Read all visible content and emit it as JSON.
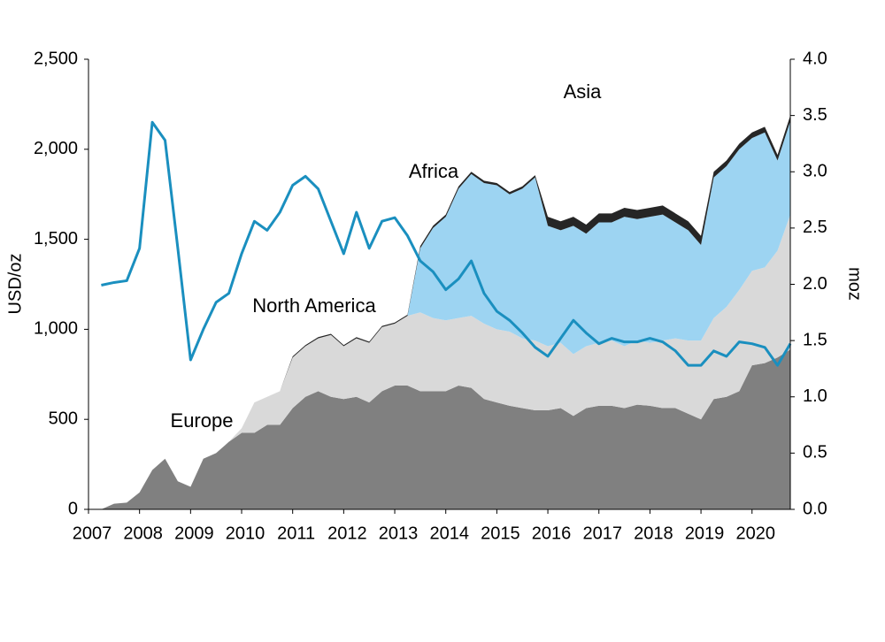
{
  "chart_data": {
    "type": "area",
    "y_label": "USD/oz",
    "y2_label": "moz",
    "xlim": [
      2007,
      2020.75
    ],
    "xticks": [
      2007,
      2008,
      2009,
      2010,
      2011,
      2012,
      2013,
      2014,
      2015,
      2016,
      2017,
      2018,
      2019,
      2020
    ],
    "ylim": [
      0,
      2500
    ],
    "yticks": [
      0,
      {
        "value": 500,
        "label": "500"
      },
      {
        "value": 1000,
        "label": "1,000"
      },
      {
        "value": 1500,
        "label": "1,500"
      },
      {
        "value": 2000,
        "label": "2,000"
      },
      {
        "value": 2500,
        "label": "2,500"
      }
    ],
    "y2lim": [
      0,
      4
    ],
    "y2ticks": [
      {
        "value": 0,
        "label": "0.0"
      },
      0.5,
      {
        "value": 1,
        "label": "1.0"
      },
      1.5,
      {
        "value": 2,
        "label": "2.0"
      },
      2.5,
      {
        "value": 3,
        "label": "3.0"
      },
      3.5,
      {
        "value": 4,
        "label": "4.0"
      }
    ],
    "x": [
      2007.25,
      2007.5,
      2007.75,
      2008,
      2008.25,
      2008.5,
      2008.75,
      2009,
      2009.25,
      2009.5,
      2009.75,
      2010,
      2010.25,
      2010.5,
      2010.75,
      2011,
      2011.25,
      2011.5,
      2011.75,
      2012,
      2012.25,
      2012.5,
      2012.75,
      2013,
      2013.25,
      2013.5,
      2013.75,
      2014,
      2014.25,
      2014.5,
      2014.75,
      2015,
      2015.25,
      2015.5,
      2015.75,
      2016,
      2016.25,
      2016.5,
      2016.75,
      2017,
      2017.25,
      2017.5,
      2017.75,
      2018,
      2018.25,
      2018.5,
      2018.75,
      2019,
      2019.25,
      2019.5,
      2019.75,
      2020,
      2020.25,
      2020.5,
      2020.75
    ],
    "series": [
      {
        "name": "Europe",
        "type": "area",
        "axis": "y2",
        "color": "#808080",
        "values": [
          0,
          0.05,
          0.06,
          0.15,
          0.35,
          0.45,
          0.25,
          0.2,
          0.45,
          0.5,
          0.6,
          0.68,
          0.68,
          0.75,
          0.75,
          0.9,
          1.0,
          1.05,
          1.0,
          0.98,
          1.0,
          0.95,
          1.05,
          1.1,
          1.1,
          1.05,
          1.05,
          1.05,
          1.1,
          1.08,
          0.98,
          0.95,
          0.92,
          0.9,
          0.88,
          0.88,
          0.9,
          0.83,
          0.9,
          0.92,
          0.92,
          0.9,
          0.93,
          0.92,
          0.9,
          0.9,
          0.85,
          0.8,
          0.98,
          1.0,
          1.05,
          1.28,
          1.3,
          1.35,
          1.42
        ]
      },
      {
        "name": "North America",
        "type": "area",
        "axis": "y2",
        "color": "#d9d9d9",
        "values": [
          0,
          0,
          0,
          0,
          0,
          0,
          0,
          0,
          0,
          0,
          0,
          0.04,
          0.27,
          0.25,
          0.3,
          0.45,
          0.45,
          0.47,
          0.55,
          0.47,
          0.52,
          0.53,
          0.57,
          0.55,
          0.62,
          0.7,
          0.65,
          0.63,
          0.6,
          0.64,
          0.67,
          0.65,
          0.66,
          0.62,
          0.62,
          0.57,
          0.58,
          0.55,
          0.55,
          0.56,
          0.58,
          0.55,
          0.57,
          0.56,
          0.6,
          0.62,
          0.65,
          0.7,
          0.72,
          0.8,
          0.9,
          0.84,
          0.85,
          0.95,
          1.2
        ]
      },
      {
        "name": "Asia",
        "type": "area",
        "axis": "y2",
        "color": "#9dd4f2",
        "values": [
          0,
          0,
          0,
          0,
          0,
          0,
          0,
          0,
          0,
          0,
          0,
          0,
          0,
          0,
          0,
          0,
          0,
          0,
          0,
          0,
          0,
          0,
          0,
          0,
          0,
          0.57,
          0.8,
          0.92,
          1.15,
          1.26,
          1.25,
          1.28,
          1.22,
          1.33,
          1.45,
          1.07,
          1.0,
          1.14,
          1.0,
          1.07,
          1.05,
          1.15,
          1.08,
          1.12,
          1.12,
          1.03,
          0.98,
          0.85,
          1.25,
          1.25,
          1.25,
          1.18,
          1.2,
          0.8,
          0.83
        ]
      },
      {
        "name": "Africa",
        "type": "area",
        "axis": "y2",
        "color": "#262626",
        "values": [
          0,
          0,
          0,
          0,
          0,
          0,
          0,
          0,
          0,
          0,
          0,
          0,
          0,
          0,
          0,
          0.01,
          0.01,
          0.01,
          0.01,
          0.01,
          0.01,
          0.01,
          0.01,
          0.01,
          0.01,
          0.02,
          0.02,
          0.02,
          0.02,
          0.02,
          0.02,
          0.02,
          0.02,
          0.02,
          0.02,
          0.08,
          0.08,
          0.08,
          0.08,
          0.08,
          0.08,
          0.08,
          0.08,
          0.08,
          0.08,
          0.08,
          0.08,
          0.08,
          0.05,
          0.05,
          0.05,
          0.05,
          0.05,
          0.05,
          0.05
        ]
      },
      {
        "type": "line",
        "color": "#1a8fbf",
        "values": [
          1245,
          1260,
          1270,
          1450,
          2150,
          2050,
          1450,
          830,
          1000,
          1150,
          1200,
          1420,
          1600,
          1550,
          1650,
          1800,
          1850,
          1780,
          1600,
          1420,
          1650,
          1450,
          1600,
          1620,
          1520,
          1380,
          1320,
          1220,
          1280,
          1380,
          1200,
          1100,
          1050,
          980,
          900,
          850,
          950,
          1050,
          980,
          920,
          950,
          930,
          930,
          950,
          930,
          880,
          800,
          800,
          880,
          850,
          930,
          920,
          900,
          800,
          920
        ]
      }
    ]
  }
}
